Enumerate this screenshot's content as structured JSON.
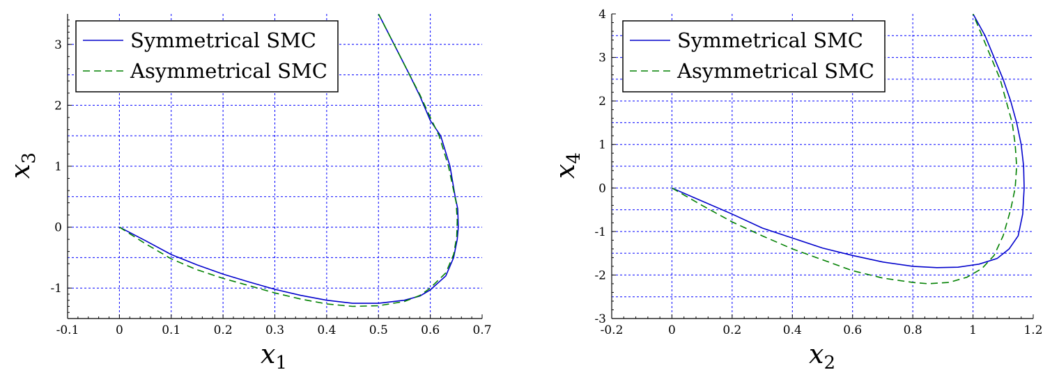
{
  "chart_data": [
    {
      "type": "line",
      "xlabel": "x",
      "xlabel_sub": "1",
      "ylabel": "x",
      "ylabel_sub": "3",
      "xlim": [
        -0.1,
        0.7
      ],
      "ylim": [
        -1.5,
        3.5
      ],
      "xticks": [
        -0.1,
        0,
        0.1,
        0.2,
        0.3,
        0.4,
        0.5,
        0.6,
        0.7
      ],
      "xtick_labels": [
        "-0.1",
        "0",
        "0.1",
        "0.2",
        "0.3",
        "0.4",
        "0.5",
        "0.6",
        "0.7"
      ],
      "yticks": [
        -1,
        0,
        1,
        2,
        3
      ],
      "ytick_labels": [
        "-1",
        "0",
        "1",
        "2",
        "3"
      ],
      "grid": true,
      "grid_x": [
        0,
        0.1,
        0.2,
        0.3,
        0.4,
        0.5,
        0.6
      ],
      "grid_y": [
        -1,
        -0.5,
        0,
        0.5,
        1,
        1.5,
        2,
        2.5,
        3
      ],
      "legend_position": "top-left",
      "series": [
        {
          "name": "Symmetrical SMC",
          "color": "#0000cc",
          "dash": "solid",
          "points": [
            [
              0,
              0
            ],
            [
              0.05,
              -0.22
            ],
            [
              0.1,
              -0.45
            ],
            [
              0.15,
              -0.62
            ],
            [
              0.2,
              -0.77
            ],
            [
              0.25,
              -0.9
            ],
            [
              0.3,
              -1.02
            ],
            [
              0.35,
              -1.12
            ],
            [
              0.4,
              -1.2
            ],
            [
              0.45,
              -1.25
            ],
            [
              0.5,
              -1.25
            ],
            [
              0.55,
              -1.2
            ],
            [
              0.58,
              -1.13
            ],
            [
              0.6,
              -1.03
            ],
            [
              0.63,
              -0.8
            ],
            [
              0.645,
              -0.5
            ],
            [
              0.652,
              -0.2
            ],
            [
              0.654,
              0
            ],
            [
              0.653,
              0.3
            ],
            [
              0.648,
              0.5
            ],
            [
              0.638,
              1.0
            ],
            [
              0.62,
              1.5
            ],
            [
              0.6,
              1.75
            ],
            [
              0.58,
              2.15
            ],
            [
              0.56,
              2.5
            ],
            [
              0.53,
              3.0
            ],
            [
              0.5,
              3.5
            ]
          ]
        },
        {
          "name": "Asymmetrical SMC",
          "color": "#008000",
          "dash": "dashed",
          "points": [
            [
              0,
              0
            ],
            [
              0.05,
              -0.27
            ],
            [
              0.1,
              -0.52
            ],
            [
              0.15,
              -0.7
            ],
            [
              0.2,
              -0.84
            ],
            [
              0.25,
              -0.96
            ],
            [
              0.3,
              -1.08
            ],
            [
              0.35,
              -1.18
            ],
            [
              0.4,
              -1.26
            ],
            [
              0.45,
              -1.3
            ],
            [
              0.5,
              -1.29
            ],
            [
              0.55,
              -1.22
            ],
            [
              0.58,
              -1.12
            ],
            [
              0.6,
              -1.0
            ],
            [
              0.63,
              -0.75
            ],
            [
              0.645,
              -0.45
            ],
            [
              0.651,
              -0.15
            ],
            [
              0.652,
              0.1
            ],
            [
              0.65,
              0.4
            ],
            [
              0.645,
              0.6
            ],
            [
              0.635,
              1.0
            ],
            [
              0.617,
              1.5
            ],
            [
              0.6,
              1.8
            ],
            [
              0.58,
              2.17
            ],
            [
              0.56,
              2.5
            ],
            [
              0.53,
              3.0
            ],
            [
              0.5,
              3.5
            ]
          ]
        }
      ]
    },
    {
      "type": "line",
      "xlabel": "x",
      "xlabel_sub": "2",
      "ylabel": "x",
      "ylabel_sub": "4",
      "xlim": [
        -0.2,
        1.2
      ],
      "ylim": [
        -3,
        4
      ],
      "xticks": [
        -0.2,
        0,
        0.2,
        0.4,
        0.6,
        0.8,
        1,
        1.2
      ],
      "xtick_labels": [
        "-0.2",
        "0",
        "0.2",
        "0.4",
        "0.6",
        "0.8",
        "1",
        "1.2"
      ],
      "yticks": [
        -3,
        -2,
        -1,
        0,
        1,
        2,
        3,
        4
      ],
      "ytick_labels": [
        "-3",
        "-2",
        "-1",
        "0",
        "1",
        "2",
        "3",
        "4"
      ],
      "grid": true,
      "grid_x": [
        0,
        0.2,
        0.4,
        0.6,
        0.8,
        1
      ],
      "grid_y": [
        -2.5,
        -2,
        -1.5,
        -1,
        -0.5,
        0,
        0.5,
        1,
        1.5,
        2,
        2.5,
        3,
        3.5
      ],
      "legend_position": "top-left",
      "series": [
        {
          "name": "Symmetrical SMC",
          "color": "#0000cc",
          "dash": "solid",
          "points": [
            [
              0,
              0
            ],
            [
              0.1,
              -0.3
            ],
            [
              0.2,
              -0.6
            ],
            [
              0.3,
              -0.92
            ],
            [
              0.4,
              -1.15
            ],
            [
              0.5,
              -1.38
            ],
            [
              0.6,
              -1.55
            ],
            [
              0.7,
              -1.7
            ],
            [
              0.8,
              -1.8
            ],
            [
              0.88,
              -1.83
            ],
            [
              0.95,
              -1.82
            ],
            [
              1.02,
              -1.75
            ],
            [
              1.08,
              -1.62
            ],
            [
              1.12,
              -1.4
            ],
            [
              1.15,
              -1.1
            ],
            [
              1.165,
              -0.6
            ],
            [
              1.17,
              0
            ],
            [
              1.168,
              0.5
            ],
            [
              1.16,
              1.0
            ],
            [
              1.145,
              1.5
            ],
            [
              1.125,
              2.0
            ],
            [
              1.1,
              2.5
            ],
            [
              1.07,
              3.0
            ],
            [
              1.04,
              3.5
            ],
            [
              1.0,
              4.0
            ]
          ]
        },
        {
          "name": "Asymmetrical SMC",
          "color": "#008000",
          "dash": "dashed",
          "points": [
            [
              0,
              0
            ],
            [
              0.1,
              -0.4
            ],
            [
              0.2,
              -0.78
            ],
            [
              0.3,
              -1.1
            ],
            [
              0.4,
              -1.4
            ],
            [
              0.5,
              -1.65
            ],
            [
              0.6,
              -1.9
            ],
            [
              0.7,
              -2.07
            ],
            [
              0.8,
              -2.17
            ],
            [
              0.85,
              -2.2
            ],
            [
              0.92,
              -2.17
            ],
            [
              0.98,
              -2.05
            ],
            [
              1.03,
              -1.85
            ],
            [
              1.07,
              -1.55
            ],
            [
              1.1,
              -1.1
            ],
            [
              1.125,
              -0.5
            ],
            [
              1.14,
              0
            ],
            [
              1.145,
              0.5
            ],
            [
              1.14,
              1.0
            ],
            [
              1.13,
              1.5
            ],
            [
              1.11,
              2.0
            ],
            [
              1.09,
              2.5
            ],
            [
              1.06,
              3.0
            ],
            [
              1.03,
              3.5
            ],
            [
              1.0,
              4.0
            ]
          ]
        }
      ]
    }
  ]
}
